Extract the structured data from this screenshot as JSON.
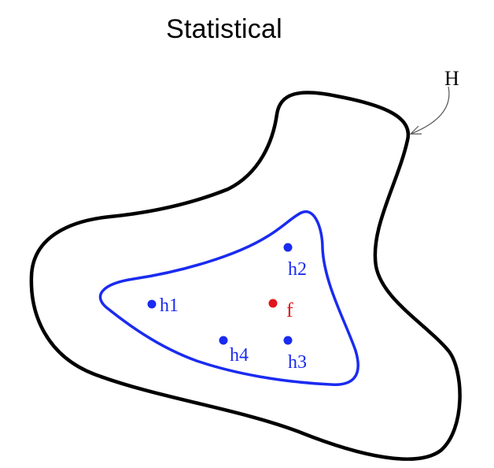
{
  "diagram": {
    "title": "Statistical",
    "outer_region": {
      "label": "H",
      "color": "#000000"
    },
    "inner_region": {
      "color": "#1a2bf0"
    },
    "points": [
      {
        "label": "h1",
        "color": "#1a2bf0"
      },
      {
        "label": "h2",
        "color": "#1a2bf0"
      },
      {
        "label": "h3",
        "color": "#1a2bf0"
      },
      {
        "label": "h4",
        "color": "#1a2bf0"
      },
      {
        "label": "f",
        "color": "#e0151b"
      }
    ]
  }
}
